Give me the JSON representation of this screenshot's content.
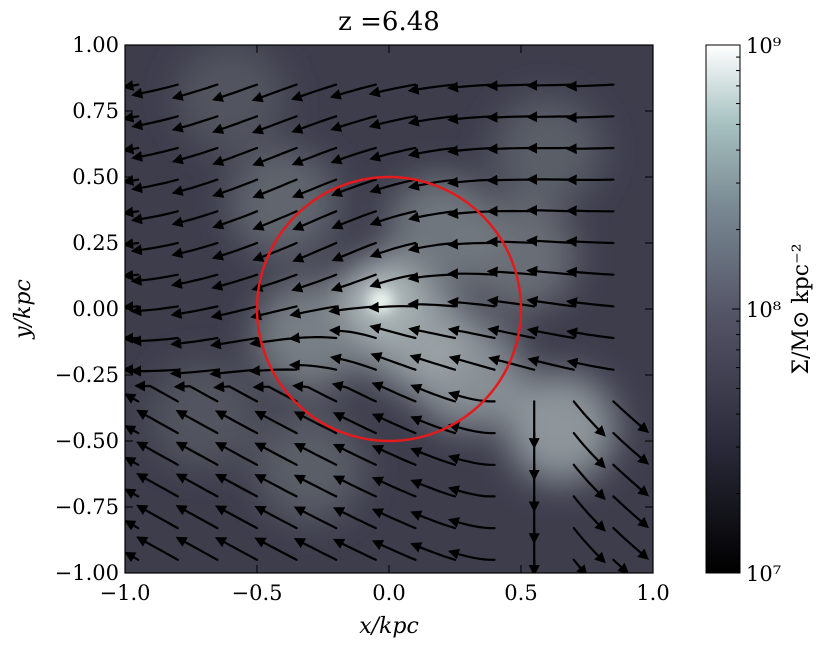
{
  "chart_data": {
    "type": "heatmap",
    "title": "z =6.48",
    "xlabel": "x/kpc",
    "ylabel": "y/kpc",
    "xlim": [
      -1.0,
      1.0
    ],
    "ylim": [
      -1.0,
      1.0
    ],
    "x_ticks": [
      "−1.0",
      "−0.5",
      "0.0",
      "0.5",
      "1.0"
    ],
    "y_ticks": [
      "1.00",
      "0.75",
      "0.50",
      "0.25",
      "0.00",
      "−0.25",
      "−0.50",
      "−0.75",
      "−1.00"
    ],
    "x_tick_values": [
      -1.0,
      -0.5,
      0.0,
      0.5,
      1.0
    ],
    "y_tick_values": [
      1.0,
      0.75,
      0.5,
      0.25,
      0.0,
      -0.25,
      -0.5,
      -0.75,
      -1.0
    ],
    "colorbar": {
      "label": "Σ/M⊙ kpc⁻²",
      "scale": "log",
      "range": [
        10000000,
        1000000000
      ],
      "tick_values": [
        1000000000,
        100000000,
        10000000
      ],
      "tick_labels": [
        "10⁹",
        "10⁸",
        "10⁷"
      ],
      "colormap": "bone"
    },
    "circle": {
      "center": [
        0.0,
        0.0
      ],
      "radius": 0.5,
      "color": "#e41a1c"
    },
    "density_peaks": [
      {
        "x": -0.03,
        "y": 0.03,
        "log_sigma": 8.9
      },
      {
        "x": 0.1,
        "y": -0.1,
        "log_sigma": 8.3
      },
      {
        "x": 0.3,
        "y": -0.25,
        "log_sigma": 8.2
      },
      {
        "x": 0.65,
        "y": -0.45,
        "log_sigma": 8.3
      },
      {
        "x": -0.3,
        "y": -0.1,
        "log_sigma": 8.0
      },
      {
        "x": 0.2,
        "y": 0.3,
        "log_sigma": 7.9
      },
      {
        "x": -0.4,
        "y": 0.4,
        "log_sigma": 7.7
      },
      {
        "x": 0.6,
        "y": 0.6,
        "log_sigma": 7.6
      },
      {
        "x": -0.6,
        "y": 0.8,
        "log_sigma": 7.5
      },
      {
        "x": -0.3,
        "y": -0.6,
        "log_sigma": 7.6
      },
      {
        "x": 0.5,
        "y": 0.2,
        "log_sigma": 7.8
      },
      {
        "x": -0.7,
        "y": -0.4,
        "log_sigma": 7.5
      }
    ],
    "streamlines": "velocity field: flow roughly right-to-left in upper half, converging toward center; diverging below",
    "colors": {
      "streamline": "#000000",
      "circle": "#e41a1c"
    }
  }
}
